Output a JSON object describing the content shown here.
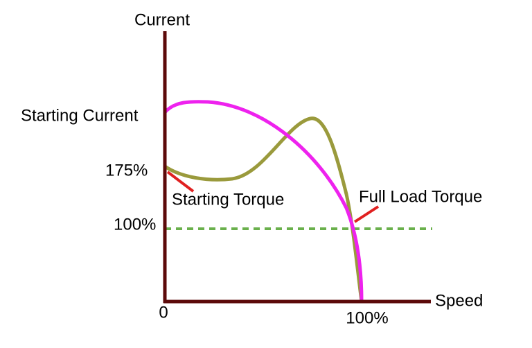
{
  "diagram": {
    "y_axis_label": "Current",
    "x_axis_label": "Speed",
    "starting_current": "Starting  Current",
    "starting_torque_level": "175%",
    "full_load_level": "100%",
    "origin": "0",
    "full_speed": "100%",
    "starting_torque": "Starting  Torque",
    "full_load_torque": "Full Load Torque"
  }
}
